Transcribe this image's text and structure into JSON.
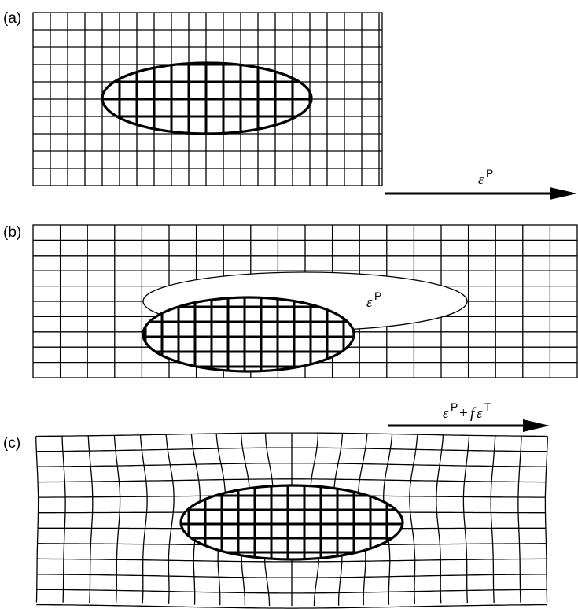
{
  "panels": [
    {
      "label": "(a)"
    },
    {
      "label": "(b)"
    },
    {
      "label": "(c)"
    }
  ],
  "arrow_a": {
    "eps": "ε",
    "sup": "P"
  },
  "ellipse_b": {
    "eps": "ε",
    "sup": "P"
  },
  "arrow_c": {
    "eps1": "ε",
    "sup1": "P",
    "plus": "+",
    "f": "f",
    "eps2": "ε",
    "sup2": "T"
  }
}
